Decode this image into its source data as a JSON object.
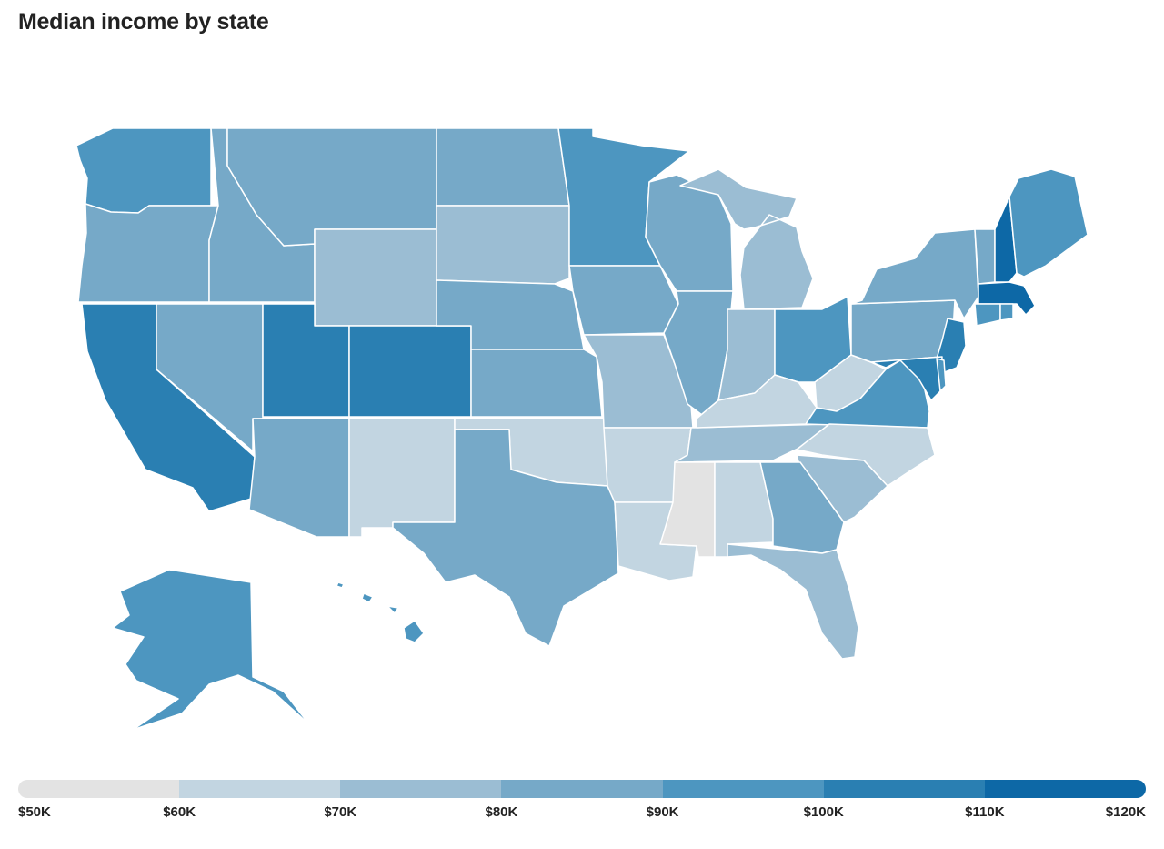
{
  "title": "Median income by state",
  "legend": {
    "ticks": [
      "$50K",
      "$60K",
      "$70K",
      "$80K",
      "$90K",
      "$100K",
      "$110K",
      "$120K"
    ],
    "colors": [
      "#e3e3e3",
      "#c2d5e1",
      "#9bbdd3",
      "#76a9c8",
      "#4d96c0",
      "#2a7fb2",
      "#0d68a6"
    ]
  },
  "chart_data": {
    "type": "choropleth",
    "title": "Median income by state",
    "bins": [
      {
        "range": [
          "$50K",
          "$60K"
        ],
        "states": [
          "Mississippi"
        ]
      },
      {
        "range": [
          "$60K",
          "$70K"
        ],
        "states": [
          "New Mexico",
          "Oklahoma",
          "Arkansas",
          "Louisiana",
          "Alabama",
          "Kentucky",
          "West Virginia",
          "North Carolina"
        ]
      },
      {
        "range": [
          "$70K",
          "$80K"
        ],
        "states": [
          "Wyoming",
          "South Dakota",
          "Michigan",
          "Indiana",
          "Missouri",
          "Tennessee",
          "South Carolina",
          "Florida"
        ]
      },
      {
        "range": [
          "$80K",
          "$90K"
        ],
        "states": [
          "Oregon",
          "Idaho",
          "Montana",
          "North Dakota",
          "Nevada",
          "Arizona",
          "Texas",
          "Nebraska",
          "Kansas",
          "Iowa",
          "Wisconsin",
          "Illinois",
          "New York",
          "Pennsylvania",
          "Vermont",
          "Georgia"
        ]
      },
      {
        "range": [
          "$90K",
          "$100K"
        ],
        "states": [
          "Washington",
          "Minnesota",
          "Alaska",
          "Hawaii",
          "Maine",
          "Ohio",
          "Virginia",
          "Delaware",
          "Connecticut",
          "Rhode Island"
        ]
      },
      {
        "range": [
          "$100K",
          "$110K"
        ],
        "states": [
          "California",
          "Utah",
          "Colorado",
          "New Jersey",
          "Maryland"
        ]
      },
      {
        "range": [
          "$110K",
          "$120K"
        ],
        "states": [
          "New Hampshire",
          "Massachusetts"
        ]
      }
    ]
  }
}
